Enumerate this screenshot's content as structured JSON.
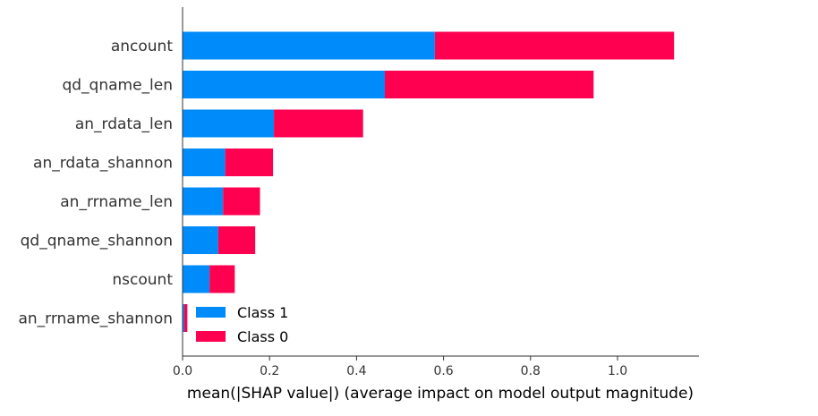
{
  "chart_data": {
    "type": "bar",
    "orientation": "horizontal",
    "stacked": true,
    "categories": [
      "ancount",
      "qd_qname_len",
      "an_rdata_len",
      "an_rdata_shannon",
      "an_rrname_len",
      "qd_qname_shannon",
      "nscount",
      "an_rrname_shannon"
    ],
    "series": [
      {
        "name": "Class 1",
        "color": "#008bfb",
        "values": [
          0.58,
          0.465,
          0.21,
          0.098,
          0.093,
          0.082,
          0.062,
          0.004
        ]
      },
      {
        "name": "Class 0",
        "color": "#ff0051",
        "values": [
          0.55,
          0.48,
          0.205,
          0.11,
          0.085,
          0.085,
          0.058,
          0.007
        ]
      }
    ],
    "xlabel": "mean(|SHAP value|) (average impact on model output magnitude)",
    "ylabel": "",
    "xlim": [
      0,
      1.18
    ],
    "xticks": [
      "0.0",
      "0.2",
      "0.4",
      "0.6",
      "0.8",
      "1.0"
    ],
    "grid": false,
    "legend_position": "lower-center"
  }
}
